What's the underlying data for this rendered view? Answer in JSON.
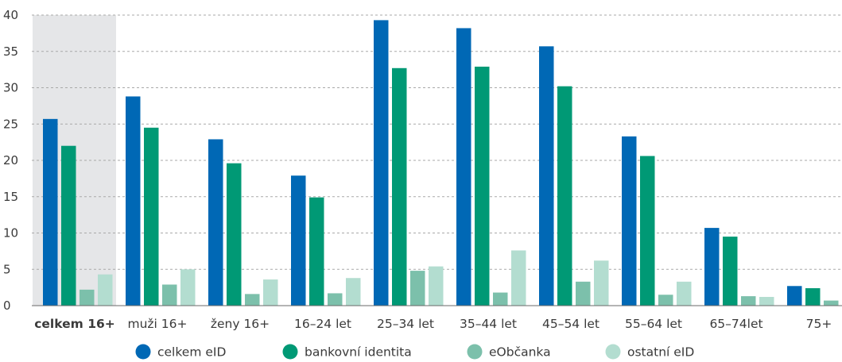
{
  "chart_data": {
    "type": "bar",
    "categories": [
      "celkem 16+",
      "muži 16+",
      "ženy 16+",
      "16–24 let",
      "25–34 let",
      "35–44 let",
      "45–54 let",
      "55–64 let",
      "65–74let",
      "75+"
    ],
    "highlight_category": "celkem 16+",
    "series": [
      {
        "name": "celkem eID",
        "color": "#0068b5",
        "values": [
          25.7,
          28.8,
          22.9,
          17.9,
          39.3,
          38.2,
          35.7,
          23.3,
          10.7,
          2.7
        ]
      },
      {
        "name": "bankovní identita",
        "color": "#009975",
        "values": [
          22.0,
          24.5,
          19.6,
          14.9,
          32.7,
          32.9,
          30.2,
          20.6,
          9.5,
          2.4
        ]
      },
      {
        "name": "eObčanka",
        "color": "#7cc0ab",
        "values": [
          2.2,
          2.9,
          1.6,
          1.7,
          4.8,
          1.8,
          3.3,
          1.5,
          1.3,
          0.7
        ]
      },
      {
        "name": "ostatní eID",
        "color": "#b3ddd0",
        "values": [
          4.3,
          5.0,
          3.6,
          3.8,
          5.4,
          7.6,
          6.2,
          3.3,
          1.2,
          0.0
        ]
      }
    ],
    "yticks": [
      0,
      5,
      10,
      15,
      20,
      25,
      30,
      35,
      40
    ],
    "ylim": [
      0,
      40
    ],
    "grid": true,
    "legend_position": "bottom"
  }
}
